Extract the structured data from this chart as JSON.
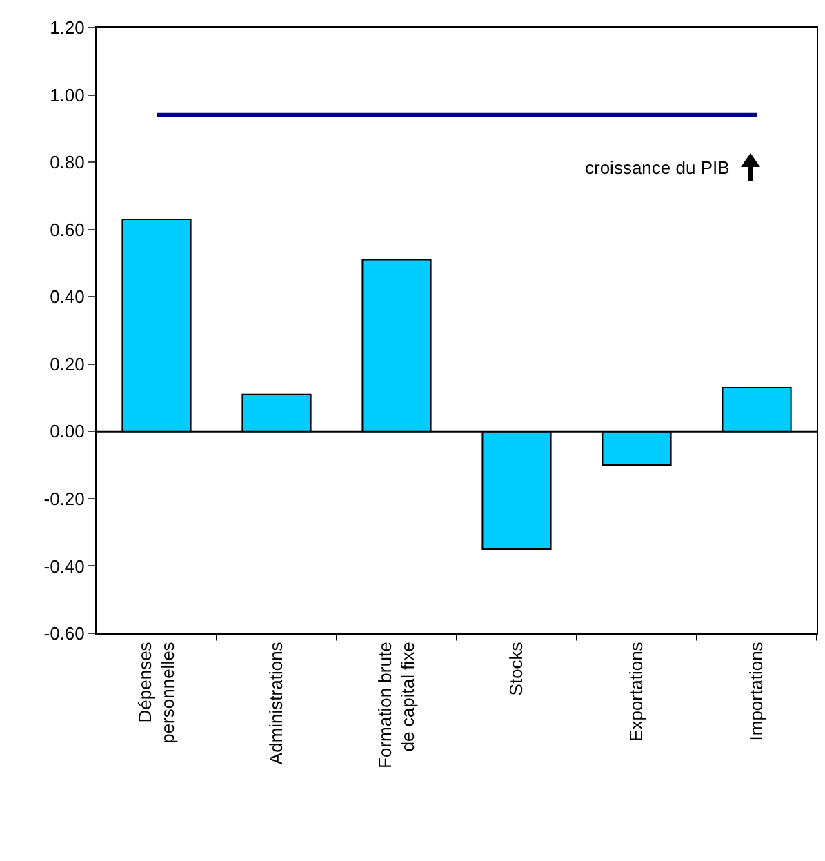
{
  "chart_data": {
    "type": "bar",
    "categories": [
      "Dépenses\npersonnelles",
      "Administrations",
      "Formation brute\nde capital fixe",
      "Stocks",
      "Exportations",
      "Importations"
    ],
    "values": [
      0.63,
      0.11,
      0.51,
      -0.35,
      -0.1,
      0.13
    ],
    "color": "#00ccff",
    "ylim": [
      -0.6,
      1.2
    ],
    "yticks": [
      {
        "value": -0.6,
        "label": "-0.60"
      },
      {
        "value": -0.4,
        "label": "-0.40"
      },
      {
        "value": -0.2,
        "label": "-0.20"
      },
      {
        "value": 0,
        "label": "0.00"
      },
      {
        "value": 0.2,
        "label": "0.20"
      },
      {
        "value": 0.4,
        "label": "0.40"
      },
      {
        "value": 0.6,
        "label": "0.60"
      },
      {
        "value": 0.8,
        "label": "0.80"
      },
      {
        "value": 1.0,
        "label": "1.00"
      },
      {
        "value": 1.2,
        "label": "1.20"
      }
    ],
    "ref_lines": [
      {
        "axis": "y",
        "value": 0.94,
        "label": "croissance du PIB",
        "color": "#000080"
      },
      {
        "axis": "y",
        "value": 0,
        "color": "#000000"
      }
    ],
    "grid": false
  }
}
